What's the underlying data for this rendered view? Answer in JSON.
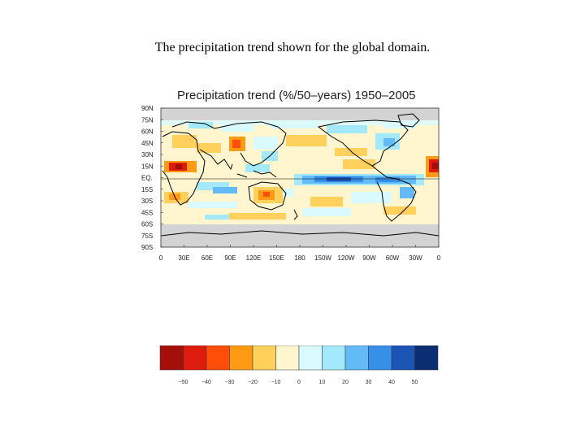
{
  "slide": {
    "caption": "The precipitation trend shown for the global domain."
  },
  "map": {
    "title": "Precipitation trend (%/50–years) 1950–2005",
    "lat_labels": [
      "90N",
      "75N",
      "60N",
      "45N",
      "30N",
      "15N",
      "EQ.",
      "15S",
      "30S",
      "45S",
      "60S",
      "75S",
      "90S"
    ],
    "lon_labels": [
      "0",
      "30E",
      "60E",
      "90E",
      "120E",
      "150E",
      "180",
      "150W",
      "120W",
      "90W",
      "60W",
      "30W",
      "0"
    ],
    "colors": {
      "land_outline": "#000000",
      "no_data": "#d3d3d3",
      "background": "#fff6d0"
    }
  },
  "colorbar": {
    "colors": [
      "#a50f0a",
      "#dd1c0d",
      "#ff4e0a",
      "#ff9a14",
      "#ffd05c",
      "#fff6d0",
      "#d9fbff",
      "#a4e9fb",
      "#62baf6",
      "#3790e8",
      "#1b54b2",
      "#0b2e73"
    ],
    "labels": [
      "−50",
      "−40",
      "−30",
      "−20",
      "−10",
      "0",
      "10",
      "20",
      "30",
      "40",
      "50"
    ]
  }
}
